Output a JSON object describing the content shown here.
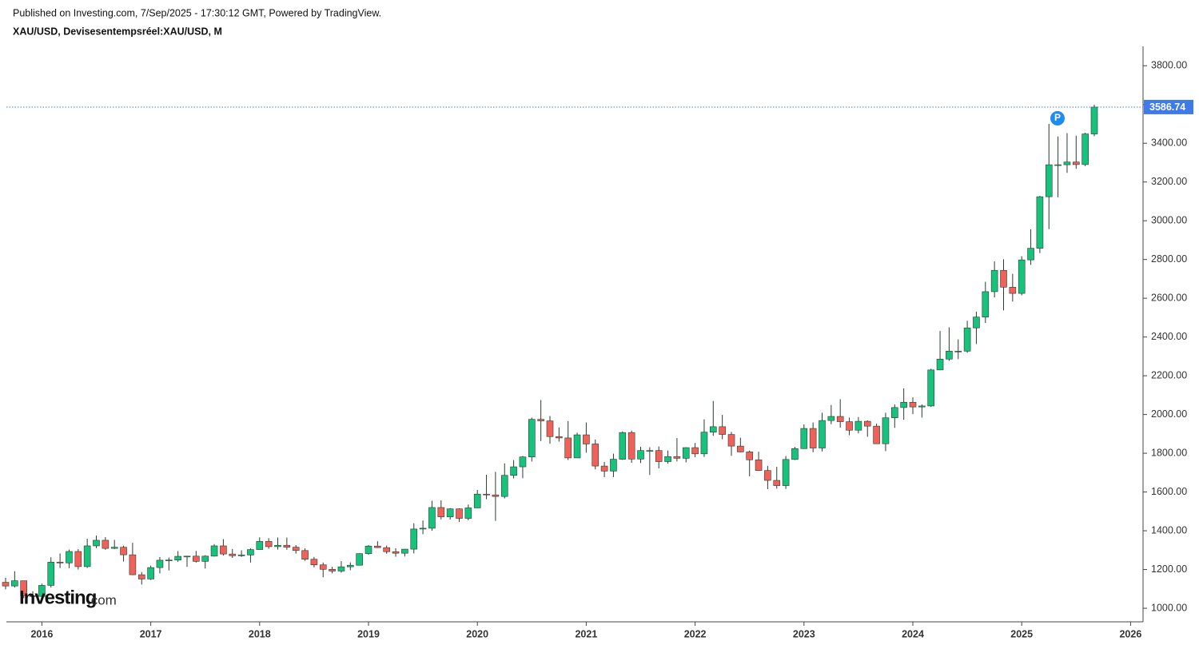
{
  "header": {
    "published": "Published on Investing.com, 7/Sep/2025 - 17:30:12 GMT, Powered by TradingView.",
    "symbol": "XAU/USD, Devisesentempsréel:XAU/USD, M"
  },
  "logo": [
    "Investing",
    ".com"
  ],
  "chart_data": {
    "type": "candlestick",
    "x": [
      "2015-09",
      "2015-10",
      "2015-11",
      "2015-12",
      "2016-01",
      "2016-02",
      "2016-03",
      "2016-04",
      "2016-05",
      "2016-06",
      "2016-07",
      "2016-08",
      "2016-09",
      "2016-10",
      "2016-11",
      "2016-12",
      "2017-01",
      "2017-02",
      "2017-03",
      "2017-04",
      "2017-05",
      "2017-06",
      "2017-07",
      "2017-08",
      "2017-09",
      "2017-10",
      "2017-11",
      "2017-12",
      "2018-01",
      "2018-02",
      "2018-03",
      "2018-04",
      "2018-05",
      "2018-06",
      "2018-07",
      "2018-08",
      "2018-09",
      "2018-10",
      "2018-11",
      "2018-12",
      "2019-01",
      "2019-02",
      "2019-03",
      "2019-04",
      "2019-05",
      "2019-06",
      "2019-07",
      "2019-08",
      "2019-09",
      "2019-10",
      "2019-11",
      "2019-12",
      "2020-01",
      "2020-02",
      "2020-03",
      "2020-04",
      "2020-05",
      "2020-06",
      "2020-07",
      "2020-08",
      "2020-09",
      "2020-10",
      "2020-11",
      "2020-12",
      "2021-01",
      "2021-02",
      "2021-03",
      "2021-04",
      "2021-05",
      "2021-06",
      "2021-07",
      "2021-08",
      "2021-09",
      "2021-10",
      "2021-11",
      "2021-12",
      "2022-01",
      "2022-02",
      "2022-03",
      "2022-04",
      "2022-05",
      "2022-06",
      "2022-07",
      "2022-08",
      "2022-09",
      "2022-10",
      "2022-11",
      "2022-12",
      "2023-01",
      "2023-02",
      "2023-03",
      "2023-04",
      "2023-05",
      "2023-06",
      "2023-07",
      "2023-08",
      "2023-09",
      "2023-10",
      "2023-11",
      "2023-12",
      "2024-01",
      "2024-02",
      "2024-03",
      "2024-04",
      "2024-05",
      "2024-06",
      "2024-07",
      "2024-08",
      "2024-09",
      "2024-10",
      "2024-11",
      "2024-12",
      "2025-01",
      "2025-02",
      "2025-03",
      "2025-04",
      "2025-05",
      "2025-06",
      "2025-07",
      "2025-08",
      "2025-09"
    ],
    "open": [
      1134,
      1115,
      1142,
      1065,
      1061,
      1118,
      1238,
      1234,
      1293,
      1215,
      1322,
      1351,
      1309,
      1315,
      1276,
      1173,
      1151,
      1210,
      1248,
      1249,
      1268,
      1269,
      1242,
      1269,
      1322,
      1280,
      1271,
      1275,
      1303,
      1345,
      1318,
      1325,
      1315,
      1298,
      1253,
      1224,
      1201,
      1192,
      1214,
      1222,
      1282,
      1321,
      1313,
      1292,
      1284,
      1305,
      1409,
      1413,
      1520,
      1472,
      1513,
      1464,
      1518,
      1589,
      1585,
      1577,
      1686,
      1730,
      1781,
      1975,
      1967,
      1886,
      1879,
      1776,
      1895,
      1848,
      1734,
      1708,
      1769,
      1907,
      1770,
      1814,
      1814,
      1757,
      1783,
      1774,
      1829,
      1797,
      1909,
      1937,
      1897,
      1837,
      1807,
      1766,
      1711,
      1660,
      1633,
      1768,
      1824,
      1928,
      1827,
      1969,
      1990,
      1963,
      1919,
      1965,
      1940,
      1849,
      1983,
      2036,
      2063,
      2039,
      2044,
      2230,
      2286,
      2327,
      2327,
      2447,
      2503,
      2634,
      2744,
      2657,
      2625,
      2798,
      2858,
      3124,
      3289,
      3289,
      3303,
      3290,
      3448
    ],
    "high": [
      1157,
      1191,
      1142,
      1088,
      1127,
      1263,
      1283,
      1303,
      1305,
      1359,
      1375,
      1367,
      1353,
      1323,
      1338,
      1187,
      1220,
      1264,
      1262,
      1295,
      1271,
      1296,
      1274,
      1331,
      1357,
      1306,
      1299,
      1309,
      1366,
      1362,
      1365,
      1365,
      1326,
      1309,
      1265,
      1236,
      1214,
      1243,
      1237,
      1284,
      1326,
      1346,
      1324,
      1310,
      1306,
      1439,
      1453,
      1555,
      1557,
      1517,
      1516,
      1535,
      1611,
      1689,
      1704,
      1748,
      1765,
      1786,
      1984,
      2075,
      1992,
      1933,
      1966,
      1906,
      1959,
      1871,
      1755,
      1798,
      1913,
      1917,
      1834,
      1831,
      1835,
      1814,
      1878,
      1831,
      1853,
      1975,
      2070,
      1998,
      1910,
      1880,
      1814,
      1808,
      1735,
      1730,
      1786,
      1833,
      1949,
      1959,
      2009,
      2049,
      2079,
      1984,
      1987,
      1970,
      1953,
      2009,
      2052,
      2135,
      2088,
      2052,
      2236,
      2431,
      2450,
      2388,
      2484,
      2531,
      2685,
      2790,
      2801,
      2726,
      2817,
      2956,
      3128,
      3500,
      3435,
      3452,
      3439,
      3454,
      3599
    ],
    "low": [
      1098,
      1107,
      1052,
      1046,
      1062,
      1107,
      1208,
      1207,
      1200,
      1208,
      1310,
      1302,
      1305,
      1241,
      1171,
      1122,
      1146,
      1180,
      1195,
      1240,
      1214,
      1236,
      1205,
      1267,
      1272,
      1260,
      1265,
      1236,
      1302,
      1307,
      1303,
      1302,
      1282,
      1245,
      1211,
      1160,
      1180,
      1183,
      1196,
      1221,
      1276,
      1311,
      1281,
      1266,
      1267,
      1283,
      1382,
      1400,
      1459,
      1458,
      1445,
      1454,
      1517,
      1563,
      1451,
      1567,
      1670,
      1671,
      1757,
      1863,
      1849,
      1860,
      1765,
      1775,
      1803,
      1717,
      1677,
      1677,
      1766,
      1751,
      1750,
      1688,
      1722,
      1746,
      1758,
      1753,
      1780,
      1781,
      1890,
      1872,
      1787,
      1805,
      1681,
      1709,
      1615,
      1617,
      1616,
      1765,
      1823,
      1805,
      1809,
      1950,
      1932,
      1893,
      1903,
      1885,
      1848,
      1811,
      1931,
      1973,
      2002,
      1984,
      2039,
      2229,
      2277,
      2286,
      2318,
      2364,
      2472,
      2604,
      2537,
      2583,
      2615,
      2772,
      2833,
      2957,
      3121,
      3247,
      3268,
      3282,
      3436
    ],
    "close": [
      1115,
      1142,
      1065,
      1061,
      1118,
      1238,
      1234,
      1293,
      1215,
      1322,
      1351,
      1309,
      1315,
      1276,
      1173,
      1151,
      1210,
      1248,
      1249,
      1268,
      1269,
      1242,
      1269,
      1322,
      1280,
      1271,
      1275,
      1303,
      1345,
      1318,
      1325,
      1315,
      1298,
      1253,
      1224,
      1201,
      1192,
      1214,
      1222,
      1282,
      1321,
      1313,
      1292,
      1284,
      1305,
      1409,
      1413,
      1520,
      1472,
      1513,
      1464,
      1518,
      1589,
      1585,
      1577,
      1686,
      1730,
      1781,
      1975,
      1967,
      1886,
      1879,
      1776,
      1895,
      1848,
      1734,
      1708,
      1769,
      1907,
      1770,
      1814,
      1814,
      1757,
      1783,
      1774,
      1829,
      1797,
      1909,
      1937,
      1897,
      1837,
      1807,
      1766,
      1711,
      1660,
      1633,
      1768,
      1824,
      1928,
      1827,
      1969,
      1990,
      1963,
      1919,
      1965,
      1940,
      1849,
      1983,
      2036,
      2063,
      2039,
      2044,
      2230,
      2286,
      2327,
      2327,
      2447,
      2503,
      2634,
      2744,
      2657,
      2625,
      2798,
      2858,
      3124,
      3289,
      3289,
      3303,
      3290,
      3448,
      3586.74
    ],
    "up_color": "#16c27c",
    "down_color": "#f0615a",
    "wick_color": "#2b3b2f",
    "ylim": [
      930,
      3900
    ],
    "yticks": [
      {
        "value": 1000,
        "label": "1000.00"
      },
      {
        "value": 1200,
        "label": "1200.00"
      },
      {
        "value": 1400,
        "label": "1400.00"
      },
      {
        "value": 1600,
        "label": "1600.00"
      },
      {
        "value": 1800,
        "label": "1800.00"
      },
      {
        "value": 2000,
        "label": "2000.00"
      },
      {
        "value": 2200,
        "label": "2200.00"
      },
      {
        "value": 2400,
        "label": "2400.00"
      },
      {
        "value": 2600,
        "label": "2600.00"
      },
      {
        "value": 2800,
        "label": "2800.00"
      },
      {
        "value": 3000,
        "label": "3000.00"
      },
      {
        "value": 3200,
        "label": "3200.00"
      },
      {
        "value": 3400,
        "label": "3400.00"
      },
      {
        "value": 3600,
        "label": "3600.00"
      },
      {
        "value": 3800,
        "label": "3800.00"
      }
    ],
    "xticks": [
      {
        "value": "2016-01",
        "label": "2016"
      },
      {
        "value": "2017-01",
        "label": "2017"
      },
      {
        "value": "2018-01",
        "label": "2018"
      },
      {
        "value": "2019-01",
        "label": "2019"
      },
      {
        "value": "2020-01",
        "label": "2020"
      },
      {
        "value": "2021-01",
        "label": "2021"
      },
      {
        "value": "2022-01",
        "label": "2022"
      },
      {
        "value": "2023-01",
        "label": "2023"
      },
      {
        "value": "2024-01",
        "label": "2024"
      },
      {
        "value": "2025-01",
        "label": "2025"
      },
      {
        "value": "2026-01",
        "label": "2026"
      }
    ],
    "last_price": 3586.74,
    "last_price_label": "3586.74",
    "last_price_color": "#3f7be8",
    "marker_label": "P",
    "marker_color": "#1e8cf0"
  }
}
